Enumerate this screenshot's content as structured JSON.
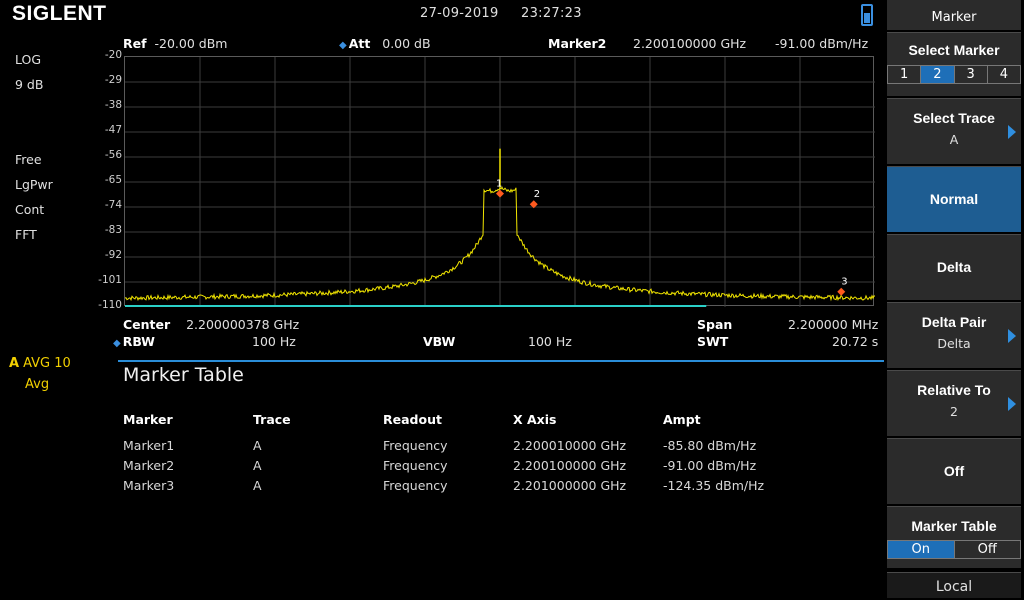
{
  "brand": "SIGLENT",
  "datetime": {
    "date": "27-09-2019",
    "time": "23:27:23"
  },
  "left_status": {
    "scale_type": "LOG",
    "scale_div": "9 dB",
    "trig": "Free",
    "detector": "LgPwr",
    "sweep": "Cont",
    "mode": "FFT",
    "trace_letter": "A",
    "trace_avg": "AVG 10",
    "trace_mode": "Avg"
  },
  "header": {
    "ref_label": "Ref",
    "ref_value": "-20.00 dBm",
    "att_label": "Att",
    "att_value": "0.00 dB",
    "marker_label": "Marker2",
    "marker_freq": "2.200100000 GHz",
    "marker_ampt": "-91.00 dBm/Hz"
  },
  "y_axis": {
    "labels": [
      "-20",
      "-29",
      "-38",
      "-47",
      "-56",
      "-65",
      "-74",
      "-83",
      "-92",
      "-101",
      "-110"
    ],
    "top": -20,
    "bottom": -110
  },
  "markers": [
    {
      "label": "1",
      "x_frac": 0.5,
      "ampt": -69.2
    },
    {
      "label": "2",
      "x_frac": 0.545,
      "ampt": -73
    },
    {
      "label": "3",
      "x_frac": 0.955,
      "ampt": -104.5
    }
  ],
  "bottom": {
    "center_label": "Center",
    "center_value": "2.200000378 GHz",
    "span_label": "Span",
    "span_value": "2.200000 MHz",
    "rbw_label": "RBW",
    "rbw_value": "100 Hz",
    "vbw_label": "VBW",
    "vbw_value": "100 Hz",
    "swt_label": "SWT",
    "swt_value": "20.72 s"
  },
  "marker_table": {
    "title": "Marker Table",
    "headers": [
      "Marker",
      "Trace",
      "Readout",
      "X Axis",
      "Ampt"
    ],
    "rows": [
      [
        "Marker1",
        "A",
        "Frequency",
        "2.200010000 GHz",
        "-85.80 dBm/Hz"
      ],
      [
        "Marker2",
        "A",
        "Frequency",
        "2.200100000 GHz",
        "-91.00 dBm/Hz"
      ],
      [
        "Marker3",
        "A",
        "Frequency",
        "2.201000000 GHz",
        "-124.35 dBm/Hz"
      ]
    ]
  },
  "panel": {
    "title": "Marker",
    "select_marker": {
      "label": "Select Marker",
      "options": [
        "1",
        "2",
        "3",
        "4"
      ],
      "selected": "2"
    },
    "select_trace": {
      "label": "Select Trace",
      "value": "A"
    },
    "normal": "Normal",
    "delta": "Delta",
    "delta_pair": {
      "label": "Delta Pair",
      "value": "Delta"
    },
    "relative_to": {
      "label": "Relative To",
      "value": "2"
    },
    "off": "Off",
    "marker_table": {
      "label": "Marker Table",
      "on": "On",
      "off": "Off"
    },
    "local": "Local"
  },
  "colors": {
    "trace": "#f2e600",
    "marker": "#ff5a1f",
    "accent": "#2a8dd8",
    "selected_key": "#1e5d92"
  }
}
